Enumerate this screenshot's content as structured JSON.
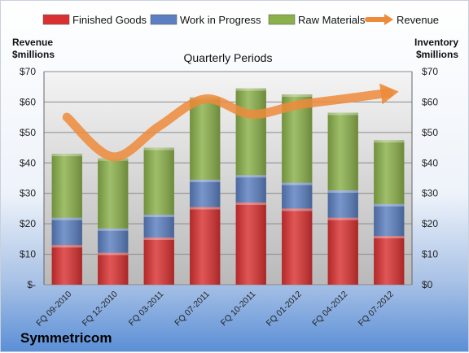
{
  "chart_data": {
    "type": "bar",
    "stacked": true,
    "title": "Quarterly Periods",
    "footer_label": "Symmetricom",
    "left_axis_label": [
      "Revenue",
      "$millions"
    ],
    "right_axis_label": [
      "Inventory",
      "$millions"
    ],
    "y_ticks_left": [
      "$-",
      "$10",
      "$20",
      "$30",
      "$40",
      "$50",
      "$60",
      "$70"
    ],
    "y_ticks_right": [
      "$0",
      "$10",
      "$20",
      "$30",
      "$40",
      "$50",
      "$60",
      "$70"
    ],
    "ylim": [
      0,
      70
    ],
    "grid": true,
    "legend_position": "top",
    "categories": [
      "FQ 09-2010",
      "FQ 12-2010",
      "FQ 03-2011",
      "FQ 07-2011",
      "FQ 10-2011",
      "FQ 01-2012",
      "FQ 04-2012",
      "FQ 07-2012"
    ],
    "series": [
      {
        "name": "Finished Goods",
        "color": "#d93131",
        "values": [
          13,
          10.5,
          15.5,
          25.5,
          27,
          25,
          22,
          16
        ]
      },
      {
        "name": "Work in Progress",
        "color": "#5b7fc0",
        "values": [
          9,
          8,
          7.5,
          9,
          9,
          8.5,
          9,
          10.5
        ]
      },
      {
        "name": "Raw Materials",
        "color": "#8ab04a",
        "values": [
          21,
          23,
          22,
          27,
          28.5,
          29,
          25.5,
          21
        ]
      }
    ],
    "line_series": {
      "name": "Revenue",
      "color": "#ed8b3b",
      "values": [
        55,
        42,
        52,
        61,
        56,
        59,
        61,
        63
      ]
    }
  }
}
